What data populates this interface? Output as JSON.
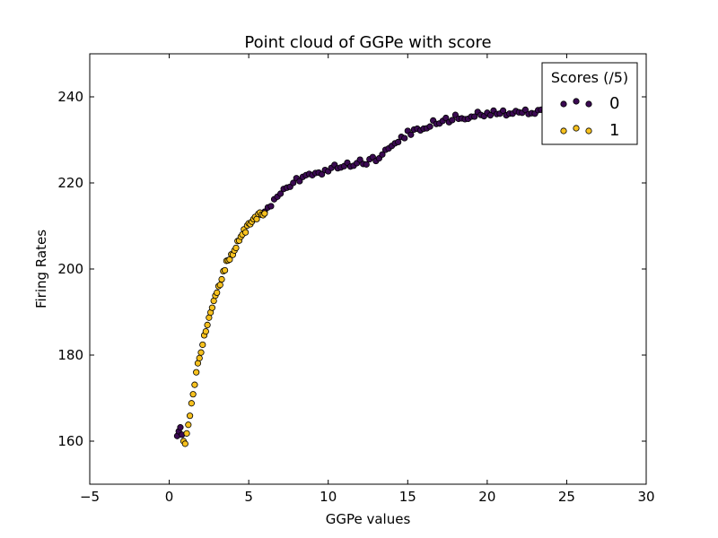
{
  "chart_data": {
    "type": "scatter",
    "title": "Point cloud of GGPe with score",
    "xlabel": "GGPe values",
    "ylabel": "Firing Rates",
    "xlim": [
      -5,
      30
    ],
    "ylim": [
      150,
      250
    ],
    "xticks": [
      -5,
      0,
      5,
      10,
      15,
      20,
      25,
      30
    ],
    "yticks": [
      160,
      180,
      200,
      220,
      240
    ],
    "grid": false,
    "legend": {
      "title": "Scores (/5)",
      "placement": "top-right",
      "entries": [
        {
          "label": "0",
          "color": "#3b0a52"
        },
        {
          "label": "1",
          "color": "#f7c11e"
        }
      ]
    },
    "series": [
      {
        "name": "0",
        "color": "#3b0a52",
        "points": [
          [
            0.5,
            161.2
          ],
          [
            0.6,
            162.3
          ],
          [
            0.7,
            163.2
          ],
          [
            0.8,
            161.5
          ],
          [
            6.0,
            213.3
          ],
          [
            6.2,
            214.3
          ],
          [
            6.4,
            214.6
          ],
          [
            6.6,
            216.2
          ],
          [
            6.8,
            216.8
          ],
          [
            7.0,
            217.5
          ],
          [
            7.2,
            218.6
          ],
          [
            7.4,
            218.9
          ],
          [
            7.6,
            219.1
          ],
          [
            7.8,
            220.0
          ],
          [
            8.0,
            221.1
          ],
          [
            8.2,
            220.4
          ],
          [
            8.4,
            221.4
          ],
          [
            8.6,
            221.8
          ],
          [
            8.8,
            222.1
          ],
          [
            9.0,
            221.8
          ],
          [
            9.2,
            222.3
          ],
          [
            9.4,
            222.4
          ],
          [
            9.6,
            222.0
          ],
          [
            9.8,
            223.0
          ],
          [
            10.0,
            222.7
          ],
          [
            10.2,
            223.5
          ],
          [
            10.4,
            224.2
          ],
          [
            10.6,
            223.4
          ],
          [
            10.8,
            223.6
          ],
          [
            11.0,
            223.9
          ],
          [
            11.2,
            224.7
          ],
          [
            11.4,
            223.8
          ],
          [
            11.6,
            224.0
          ],
          [
            11.8,
            224.6
          ],
          [
            12.0,
            225.4
          ],
          [
            12.2,
            224.4
          ],
          [
            12.4,
            224.3
          ],
          [
            12.6,
            225.5
          ],
          [
            12.8,
            226.0
          ],
          [
            13.0,
            225.1
          ],
          [
            13.2,
            225.7
          ],
          [
            13.4,
            226.6
          ],
          [
            13.6,
            227.7
          ],
          [
            13.8,
            228.0
          ],
          [
            14.0,
            228.6
          ],
          [
            14.2,
            229.2
          ],
          [
            14.4,
            229.5
          ],
          [
            14.6,
            230.7
          ],
          [
            14.8,
            230.4
          ],
          [
            15.0,
            232.1
          ],
          [
            15.2,
            231.2
          ],
          [
            15.4,
            232.4
          ],
          [
            15.6,
            232.6
          ],
          [
            15.8,
            232.2
          ],
          [
            16.0,
            232.6
          ],
          [
            16.2,
            232.7
          ],
          [
            16.4,
            233.1
          ],
          [
            16.6,
            234.5
          ],
          [
            16.8,
            233.7
          ],
          [
            17.0,
            233.8
          ],
          [
            17.2,
            234.4
          ],
          [
            17.4,
            235.1
          ],
          [
            17.6,
            234.1
          ],
          [
            17.8,
            234.6
          ],
          [
            18.0,
            235.8
          ],
          [
            18.2,
            234.9
          ],
          [
            18.4,
            235.0
          ],
          [
            18.6,
            234.8
          ],
          [
            18.8,
            234.9
          ],
          [
            19.0,
            235.4
          ],
          [
            19.2,
            235.4
          ],
          [
            19.4,
            236.5
          ],
          [
            19.6,
            235.8
          ],
          [
            19.8,
            235.5
          ],
          [
            20.0,
            236.3
          ],
          [
            20.2,
            235.7
          ],
          [
            20.4,
            236.8
          ],
          [
            20.6,
            236.0
          ],
          [
            20.8,
            236.1
          ],
          [
            21.0,
            236.8
          ],
          [
            21.2,
            235.7
          ],
          [
            21.4,
            236.1
          ],
          [
            21.6,
            236.1
          ],
          [
            21.8,
            236.7
          ],
          [
            22.0,
            236.4
          ],
          [
            22.2,
            236.3
          ],
          [
            22.4,
            237.0
          ],
          [
            22.6,
            236.0
          ],
          [
            22.8,
            236.2
          ],
          [
            23.0,
            236.1
          ],
          [
            23.2,
            236.9
          ],
          [
            23.4,
            237.0
          ],
          [
            23.6,
            236.7
          ],
          [
            23.8,
            236.6
          ],
          [
            24.0,
            236.7
          ],
          [
            24.2,
            236.7
          ],
          [
            24.4,
            237.3
          ],
          [
            24.6,
            236.9
          ],
          [
            24.8,
            237.4
          ],
          [
            25.0,
            236.5
          ],
          [
            25.2,
            236.5
          ],
          [
            25.4,
            237.1
          ],
          [
            25.6,
            236.7
          ],
          [
            25.8,
            237.7
          ],
          [
            26.0,
            237.3
          ]
        ]
      },
      {
        "name": "1",
        "color": "#f7c11e",
        "points": [
          [
            0.9,
            160.0
          ],
          [
            1.0,
            159.4
          ],
          [
            1.1,
            161.8
          ],
          [
            1.2,
            163.8
          ],
          [
            1.3,
            165.9
          ],
          [
            1.4,
            168.8
          ],
          [
            1.5,
            170.9
          ],
          [
            1.6,
            173.1
          ],
          [
            1.7,
            176.0
          ],
          [
            1.8,
            178.1
          ],
          [
            1.9,
            179.3
          ],
          [
            2.0,
            180.6
          ],
          [
            2.1,
            182.4
          ],
          [
            2.2,
            184.6
          ],
          [
            2.3,
            185.5
          ],
          [
            2.4,
            187.0
          ],
          [
            2.5,
            188.7
          ],
          [
            2.6,
            189.9
          ],
          [
            2.7,
            191.0
          ],
          [
            2.8,
            192.6
          ],
          [
            2.9,
            193.8
          ],
          [
            3.0,
            194.5
          ],
          [
            3.1,
            196.0
          ],
          [
            3.2,
            196.3
          ],
          [
            3.3,
            197.6
          ],
          [
            3.4,
            199.5
          ],
          [
            3.5,
            199.7
          ],
          [
            3.6,
            201.9
          ],
          [
            3.7,
            202.0
          ],
          [
            3.8,
            202.2
          ],
          [
            3.9,
            203.4
          ],
          [
            4.0,
            203.3
          ],
          [
            4.1,
            204.3
          ],
          [
            4.2,
            204.9
          ],
          [
            4.3,
            206.5
          ],
          [
            4.4,
            206.6
          ],
          [
            4.5,
            207.5
          ],
          [
            4.6,
            208.0
          ],
          [
            4.7,
            209.2
          ],
          [
            4.8,
            208.5
          ],
          [
            4.9,
            210.1
          ],
          [
            5.0,
            210.6
          ],
          [
            5.1,
            210.4
          ],
          [
            5.2,
            211.0
          ],
          [
            5.3,
            211.6
          ],
          [
            5.4,
            212.1
          ],
          [
            5.5,
            211.6
          ],
          [
            5.6,
            212.8
          ],
          [
            5.7,
            213.1
          ],
          [
            5.8,
            212.6
          ],
          [
            5.9,
            212.5
          ],
          [
            6.0,
            212.9
          ]
        ]
      }
    ]
  }
}
